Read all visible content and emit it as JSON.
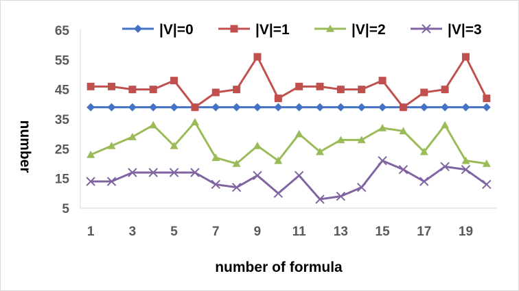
{
  "chart_data": {
    "type": "line",
    "title": "",
    "xlabel": "number of formula",
    "ylabel": "number",
    "x": [
      1,
      2,
      3,
      4,
      5,
      6,
      7,
      8,
      9,
      10,
      11,
      12,
      13,
      14,
      15,
      16,
      17,
      18,
      19,
      20
    ],
    "x_tick_labels": [
      "1",
      "3",
      "5",
      "7",
      "9",
      "11",
      "13",
      "15",
      "17",
      "19"
    ],
    "y_tick_labels": [
      "5",
      "15",
      "25",
      "35",
      "45",
      "55",
      "65"
    ],
    "ylim": [
      5,
      65
    ],
    "grid": false,
    "legend": "top",
    "series": [
      {
        "name": "|V|=0",
        "color": "#4472c4",
        "marker": "diamond",
        "values": [
          39,
          39,
          39,
          39,
          39,
          39,
          39,
          39,
          39,
          39,
          39,
          39,
          39,
          39,
          39,
          39,
          39,
          39,
          39,
          39
        ]
      },
      {
        "name": "|V|=1",
        "color": "#c0504d",
        "marker": "square",
        "values": [
          46,
          46,
          45,
          45,
          48,
          39,
          44,
          45,
          56,
          42,
          46,
          46,
          45,
          45,
          48,
          39,
          44,
          45,
          56,
          42
        ]
      },
      {
        "name": "|V|=2",
        "color": "#9bbb59",
        "marker": "triangle",
        "values": [
          23,
          26,
          29,
          33,
          26,
          34,
          22,
          20,
          26,
          21,
          30,
          24,
          28,
          28,
          32,
          31,
          24,
          33,
          21,
          20
        ]
      },
      {
        "name": "|V|=3",
        "color": "#8064a2",
        "marker": "x",
        "values": [
          14,
          14,
          17,
          17,
          17,
          17,
          13,
          12,
          16,
          10,
          16,
          8,
          9,
          12,
          21,
          18,
          14,
          19,
          18,
          13
        ]
      }
    ]
  }
}
